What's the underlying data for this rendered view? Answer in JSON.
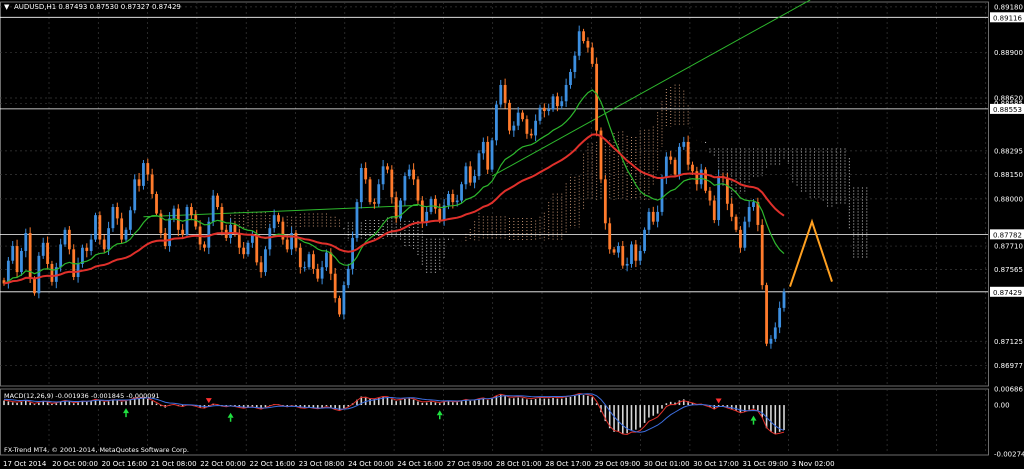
{
  "window": {
    "title_arrow": "▼",
    "title": "AUDUSD,H1  0.87493 0.87530 0.87327 0.87429",
    "copyright": "FX-Trend MT4, © 2001-2014, MetaQuotes Software Corp."
  },
  "colors": {
    "background": "#000000",
    "grid": "#3a3a3a",
    "bull": "#3d8fe0",
    "bear": "#ff7b2c",
    "ema_fast": "#2db82d",
    "ema_slow": "#e0302b",
    "cloud_a": "#f0b48c",
    "cloud_b": "#ffffff",
    "forecast": "#ffa020",
    "hline": "#ffffff",
    "macd_hist": "#d8d8d8",
    "macd_main": "#e0302b",
    "macd_signal": "#3d6fe0",
    "arrow_up": "#20e040",
    "arrow_down": "#ff3030"
  },
  "chart_data": [
    {
      "type": "candlestick",
      "symbol": "AUDUSD",
      "timeframe": "H1",
      "ohlc_last": {
        "open": 0.87493,
        "high": 0.8753,
        "low": 0.87327,
        "close": 0.87429
      },
      "ylim": [
        0.8685,
        0.8921
      ],
      "y_ticks": [
        "0.89180",
        "0.88900",
        "0.88620",
        "0.88585",
        "0.88295",
        "0.88150",
        "0.88000",
        "0.87710",
        "0.87565",
        "0.87125",
        "0.86977"
      ],
      "x_ticks": [
        "17 Oct 2014",
        "20 Oct 00:00",
        "20 Oct 16:00",
        "21 Oct 08:00",
        "22 Oct 00:00",
        "22 Oct 16:00",
        "23 Oct 08:00",
        "24 Oct 00:00",
        "24 Oct 16:00",
        "27 Oct 09:00",
        "28 Oct 01:00",
        "28 Oct 17:00",
        "29 Oct 09:00",
        "30 Oct 01:00",
        "30 Oct 17:00",
        "31 Oct 09:00",
        "3 Nov 02:00"
      ],
      "price_tags": [
        "0.89116",
        "0.88553",
        "0.87782",
        "0.87429"
      ],
      "horizontal_lines": [
        0.89116,
        0.88553,
        0.87782,
        0.87429
      ],
      "closes": [
        0.8748,
        0.8762,
        0.8771,
        0.8755,
        0.8768,
        0.8779,
        0.8751,
        0.8742,
        0.8765,
        0.8773,
        0.876,
        0.8749,
        0.8758,
        0.8772,
        0.8781,
        0.8769,
        0.8752,
        0.876,
        0.877,
        0.8768,
        0.8775,
        0.879,
        0.8775,
        0.8769,
        0.8782,
        0.8795,
        0.8788,
        0.8775,
        0.8781,
        0.8793,
        0.8812,
        0.8808,
        0.8822,
        0.8815,
        0.8803,
        0.8791,
        0.8779,
        0.8771,
        0.8788,
        0.8794,
        0.8781,
        0.8778,
        0.8795,
        0.879,
        0.8783,
        0.8772,
        0.877,
        0.8786,
        0.8802,
        0.8795,
        0.8781,
        0.8776,
        0.8784,
        0.8779,
        0.877,
        0.8766,
        0.8773,
        0.8778,
        0.8761,
        0.8755,
        0.8769,
        0.8782,
        0.879,
        0.8786,
        0.8775,
        0.8769,
        0.8779,
        0.877,
        0.8758,
        0.8758,
        0.8766,
        0.8757,
        0.8751,
        0.8758,
        0.8767,
        0.8754,
        0.8739,
        0.8729,
        0.8747,
        0.8757,
        0.8776,
        0.8798,
        0.8819,
        0.8812,
        0.8798,
        0.8797,
        0.8809,
        0.882,
        0.8818,
        0.8801,
        0.8788,
        0.8799,
        0.8814,
        0.8818,
        0.8812,
        0.8799,
        0.8786,
        0.8792,
        0.88,
        0.8794,
        0.8787,
        0.8796,
        0.8803,
        0.8798,
        0.8799,
        0.8809,
        0.882,
        0.881,
        0.8814,
        0.8828,
        0.8835,
        0.8818,
        0.8836,
        0.8858,
        0.887,
        0.8859,
        0.8842,
        0.8845,
        0.8853,
        0.8849,
        0.884,
        0.8839,
        0.8848,
        0.8856,
        0.8854,
        0.8855,
        0.8863,
        0.8857,
        0.886,
        0.887,
        0.8878,
        0.8888,
        0.8903,
        0.8897,
        0.8893,
        0.8883,
        0.8842,
        0.8812,
        0.8785,
        0.8769,
        0.8767,
        0.8771,
        0.8759,
        0.876,
        0.8772,
        0.8762,
        0.8768,
        0.8781,
        0.8792,
        0.8786,
        0.8792,
        0.8813,
        0.8826,
        0.8824,
        0.8815,
        0.8832,
        0.8835,
        0.8821,
        0.8817,
        0.8809,
        0.8818,
        0.8805,
        0.8799,
        0.8787,
        0.8814,
        0.8813,
        0.8797,
        0.8789,
        0.8781,
        0.877,
        0.8786,
        0.8795,
        0.8798,
        0.8784,
        0.8747,
        0.8711,
        0.8714,
        0.8721,
        0.8733,
        0.8743
      ]
    },
    {
      "type": "line",
      "name": "MACD(12,26,9) -0.001936 -0.001845 -0.000091",
      "ylim": [
        -0.0028,
        0.0009
      ],
      "y_ticks": [
        "0.00686",
        "0.00",
        "-0.002747"
      ],
      "histogram": [
        0.00025,
        0.0002,
        0.00015,
        0.00012,
        0.00018,
        0.00024,
        0.00014,
        5e-05,
        0.00012,
        0.0002,
        0.00015,
        6e-05,
        0.0001,
        0.00018,
        0.00024,
        0.0002,
        0.0001,
        0.00014,
        0.0002,
        0.00018,
        0.00022,
        0.0003,
        0.00025,
        0.00018,
        0.0002,
        0.00028,
        0.00025,
        0.00018,
        0.00022,
        0.00028,
        0.00038,
        0.00036,
        0.0004,
        0.00034,
        0.00022,
        8e-05,
        -6e-05,
        -0.00014,
        -4e-05,
        2e-05,
        -6e-05,
        -0.0001,
        0.0,
        -2e-05,
        -8e-05,
        -0.00016,
        -0.00018,
        -6e-05,
        8e-05,
        4e-05,
        -6e-05,
        -0.0001,
        -4e-05,
        -8e-05,
        -0.00014,
        -0.00018,
        -0.00012,
        -8e-05,
        -0.00016,
        -0.00022,
        -0.00012,
        -2e-05,
        6e-05,
        4e-05,
        -4e-05,
        -0.0001,
        -2e-05,
        -8e-05,
        -0.00016,
        -0.00018,
        -0.00012,
        -0.00016,
        -0.0002,
        -0.00014,
        -6e-05,
        -0.00014,
        -0.00024,
        -0.0003,
        -0.00018,
        -8e-05,
        0.0001,
        0.0003,
        0.00048,
        0.00046,
        0.00036,
        0.00034,
        0.0004,
        0.00046,
        0.00044,
        0.00032,
        0.00022,
        0.00026,
        0.00034,
        0.00036,
        0.0003,
        0.0002,
        0.00012,
        0.00014,
        0.00018,
        0.00014,
        0.0001,
        0.00016,
        0.0002,
        0.00016,
        0.00016,
        0.00022,
        0.0003,
        0.00024,
        0.00026,
        0.00034,
        0.00038,
        0.00028,
        0.00036,
        0.0005,
        0.00058,
        0.0005,
        0.00038,
        0.00038,
        0.00042,
        0.00038,
        0.00032,
        0.0003,
        0.00034,
        0.00038,
        0.00036,
        0.00036,
        0.0004,
        0.00036,
        0.00036,
        0.00042,
        0.00046,
        0.00052,
        0.0006,
        0.00056,
        0.00052,
        0.00044,
        0.0001,
        -0.0004,
        -0.0009,
        -0.0013,
        -0.0015,
        -0.0015,
        -0.0016,
        -0.00158,
        -0.0014,
        -0.00138,
        -0.00126,
        -0.001,
        -0.0007,
        -0.0006,
        -0.00048,
        -0.0002,
        0.0001,
        0.00018,
        0.00014,
        0.00026,
        0.00032,
        0.00022,
        0.00014,
        4e-05,
        6e-05,
        -4e-05,
        -0.00012,
        -0.00024,
        -8e-05,
        -6e-05,
        -0.00016,
        -0.00024,
        -0.00032,
        -0.00044,
        -0.00036,
        -0.00026,
        -0.0002,
        -0.0003,
        -0.0007,
        -0.0013,
        -0.0015,
        -0.0016,
        -0.0015,
        -0.0014
      ],
      "up_arrows": [
        28,
        52,
        100,
        172
      ],
      "down_arrows": [
        47,
        164
      ]
    }
  ]
}
